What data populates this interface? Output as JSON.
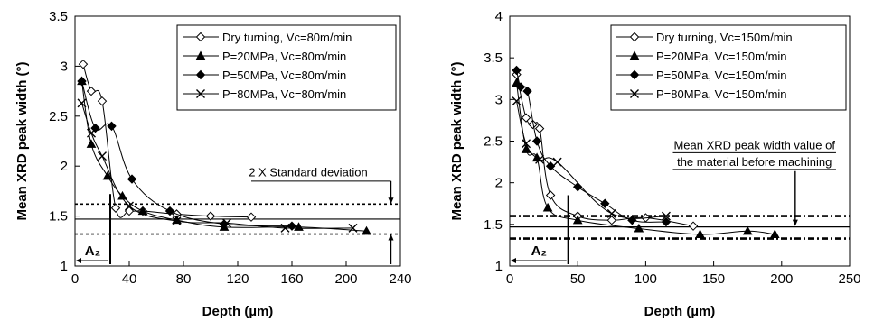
{
  "chart_data": [
    {
      "type": "line",
      "title": "",
      "xlabel": "Depth (µm)",
      "ylabel": "Mean XRD peak width (°)",
      "xlim": [
        0,
        240
      ],
      "ylim": [
        1,
        3.5
      ],
      "xticks": [
        "0",
        "40",
        "80",
        "120",
        "160",
        "200",
        "240"
      ],
      "yticks": [
        "1",
        "1.5",
        "2",
        "2.5",
        "3",
        "3.5"
      ],
      "legend_position": "top-right",
      "series": [
        {
          "name": "Dry turning, Vc=80m/min",
          "marker": "diamond-open",
          "x": [
            6,
            12,
            20,
            30,
            40,
            50,
            75,
            100,
            130
          ],
          "y": [
            3.02,
            2.75,
            2.65,
            1.58,
            1.55,
            1.55,
            1.52,
            1.5,
            1.49
          ]
        },
        {
          "name": "P=20MPa, Vc=80m/min",
          "marker": "triangle",
          "x": [
            5,
            12,
            24,
            35,
            50,
            75,
            110,
            165,
            215
          ],
          "y": [
            2.85,
            2.22,
            1.9,
            1.7,
            1.55,
            1.46,
            1.39,
            1.39,
            1.35
          ]
        },
        {
          "name": "P=50MPa, Vc=80m/min",
          "marker": "diamond",
          "x": [
            5,
            15,
            27,
            42,
            70,
            110,
            160
          ],
          "y": [
            2.85,
            2.38,
            2.4,
            1.87,
            1.55,
            1.42,
            1.4
          ]
        },
        {
          "name": "P=80MPa, Vc=80m/min",
          "marker": "x",
          "x": [
            5,
            12,
            20,
            40,
            75,
            112,
            155,
            205
          ],
          "y": [
            2.63,
            2.33,
            2.1,
            1.6,
            1.45,
            1.43,
            1.38,
            1.38
          ]
        }
      ],
      "reference_lines": {
        "mean": 1.47,
        "upper": 1.62,
        "lower": 1.32
      },
      "annotations": {
        "std_label": "2 X Standard deviation",
        "a2_label": "A₂",
        "a2_depth": 26
      }
    },
    {
      "type": "line",
      "title": "",
      "xlabel": "Depth (µm)",
      "ylabel": "Mean XRD peak width (°)",
      "xlim": [
        0,
        250
      ],
      "ylim": [
        1,
        4
      ],
      "xticks": [
        "0",
        "50",
        "100",
        "150",
        "200",
        "250"
      ],
      "yticks": [
        "1",
        "1.5",
        "2",
        "2.5",
        "3",
        "3.5",
        "4"
      ],
      "legend_position": "top-right",
      "series": [
        {
          "name": "Dry turning, Vc=150m/min",
          "marker": "diamond-open",
          "x": [
            5,
            12,
            17,
            22,
            30,
            50,
            75,
            100,
            135
          ],
          "y": [
            3.3,
            2.78,
            2.7,
            2.65,
            1.85,
            1.6,
            1.55,
            1.58,
            1.48
          ]
        },
        {
          "name": "P=20MPa, Vc=150m/min",
          "marker": "triangle",
          "x": [
            5,
            12,
            20,
            28,
            50,
            95,
            140,
            175,
            195
          ],
          "y": [
            3.2,
            2.4,
            2.3,
            1.7,
            1.55,
            1.45,
            1.38,
            1.42,
            1.38
          ]
        },
        {
          "name": "P=50MPa, Vc=150m/min",
          "marker": "diamond",
          "x": [
            5,
            8,
            13,
            20,
            30,
            50,
            70,
            90,
            115
          ],
          "y": [
            3.35,
            3.15,
            3.1,
            2.5,
            2.2,
            1.95,
            1.75,
            1.55,
            1.53
          ]
        },
        {
          "name": "P=80MPa, Vc=150m/min",
          "marker": "x",
          "x": [
            5,
            12,
            22,
            35,
            75,
            115
          ],
          "y": [
            2.98,
            2.47,
            2.28,
            2.25,
            1.63,
            1.6
          ]
        }
      ],
      "reference_lines": {
        "mean": 1.47,
        "upper": 1.6,
        "lower": 1.33
      },
      "annotations": {
        "mean_label_line1": "Mean XRD peak width value of",
        "mean_label_line2": "the material before machining",
        "a2_label": "A₂",
        "a2_depth": 43
      }
    }
  ]
}
